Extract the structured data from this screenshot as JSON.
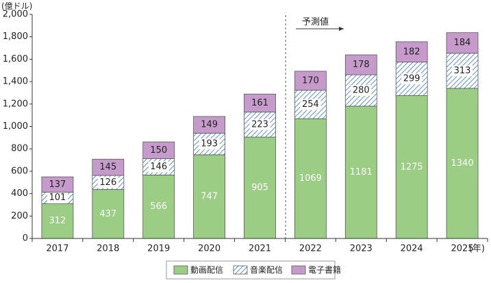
{
  "chart_data": {
    "type": "bar",
    "stacked": true,
    "y_unit": "(億ドル)",
    "x_unit": "(年)",
    "categories": [
      "2017",
      "2018",
      "2019",
      "2020",
      "2021",
      "2022",
      "2023",
      "2024",
      "2025"
    ],
    "series": [
      {
        "name": "動画配信",
        "values": [
          312,
          437,
          566,
          747,
          905,
          1069,
          1181,
          1275,
          1340
        ],
        "color": "#9ccd85",
        "pattern": "solid"
      },
      {
        "name": "音楽配信",
        "values": [
          101,
          126,
          146,
          193,
          223,
          254,
          280,
          299,
          313
        ],
        "color": "#6b9bd8",
        "pattern": "diagonal-hatch"
      },
      {
        "name": "電子書籍",
        "values": [
          137,
          145,
          150,
          149,
          161,
          170,
          178,
          182,
          184
        ],
        "color": "#c69bcb",
        "pattern": "solid"
      }
    ],
    "yticks": [
      "0",
      "200",
      "400",
      "600",
      "800",
      "1,000",
      "1,200",
      "1,400",
      "1,600",
      "1,800",
      "2,000"
    ],
    "ylim": [
      0,
      2000
    ],
    "forecast_label": "予測値",
    "grid": false,
    "legend_position": "bottom"
  }
}
